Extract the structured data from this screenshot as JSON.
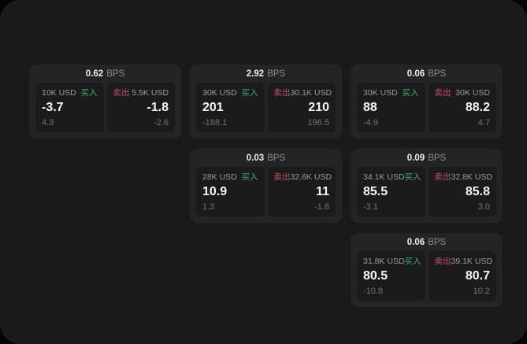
{
  "labels": {
    "buy": "买入",
    "sell": "卖出",
    "bps_unit": "BPS"
  },
  "colors": {
    "backdrop": "#050505",
    "window_bg": "#1a1a1b",
    "card_bg": "#242426",
    "panel_bg": "#1b1b1c",
    "buy_green": "#3fae6a",
    "sell_red": "#c84f63",
    "price_text": "#f4f4f4",
    "muted_text": "#9b9b9b"
  },
  "cards": [
    {
      "bps": "0.62",
      "col": 0,
      "row": 0,
      "buy": {
        "notional": "10K USD",
        "price": "-3.7",
        "sub": "4.3"
      },
      "sell": {
        "notional": "5.5K USD",
        "price": "-1.8",
        "sub": "-2.6"
      }
    },
    {
      "bps": "2.92",
      "col": 1,
      "row": 0,
      "buy": {
        "notional": "30K USD",
        "price": "201",
        "sub": "-188.1"
      },
      "sell": {
        "notional": "30.1K USD",
        "price": "210",
        "sub": "196.5"
      }
    },
    {
      "bps": "0.06",
      "col": 2,
      "row": 0,
      "buy": {
        "notional": "30K USD",
        "price": "88",
        "sub": "-4.9"
      },
      "sell": {
        "notional": "30K USD",
        "price": "88.2",
        "sub": "4.7"
      }
    },
    {
      "bps": "0.03",
      "col": 1,
      "row": 1,
      "buy": {
        "notional": "28K USD",
        "price": "10.9",
        "sub": "1.3"
      },
      "sell": {
        "notional": "32.6K USD",
        "price": "11",
        "sub": "-1.8"
      }
    },
    {
      "bps": "0.09",
      "col": 2,
      "row": 1,
      "buy": {
        "notional": "34.1K USD",
        "price": "85.5",
        "sub": "-3.1"
      },
      "sell": {
        "notional": "32.8K USD",
        "price": "85.8",
        "sub": "3.0"
      }
    },
    {
      "bps": "0.06",
      "col": 2,
      "row": 2,
      "buy": {
        "notional": "31.8K USD",
        "price": "80.5",
        "sub": "-10.8"
      },
      "sell": {
        "notional": "39.1K USD",
        "price": "80.7",
        "sub": "10.2"
      }
    }
  ]
}
